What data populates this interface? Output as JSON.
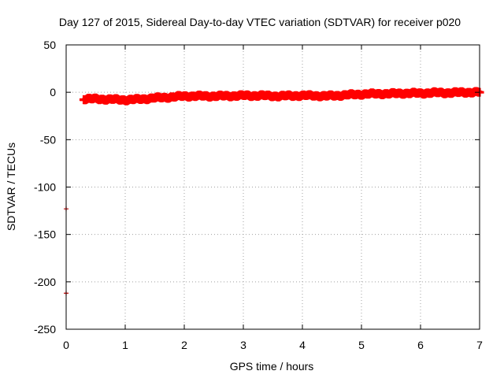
{
  "chart_data": {
    "type": "scatter",
    "title": "Day 127 of 2015, Sidereal Day-to-day VTEC variation (SDTVAR) for receiver p020",
    "xlabel": "GPS time / hours",
    "ylabel": "SDTVAR / TECUs",
    "xlim": [
      0,
      7
    ],
    "ylim": [
      -250,
      50
    ],
    "x_ticks": [
      "0",
      "1",
      "2",
      "3",
      "4",
      "5",
      "6",
      "7"
    ],
    "y_ticks": [
      "50",
      "0",
      "-50",
      "-100",
      "-150",
      "-200",
      "-250"
    ],
    "grid": true,
    "legend": "none",
    "marker": "plus",
    "series_color": "#ff0000",
    "outlier_color": "#c00000",
    "outliers": [
      {
        "x": 0.0,
        "y": -123
      },
      {
        "x": 0.0,
        "y": -212
      }
    ],
    "series": [
      {
        "x": [
          0.3,
          0.5,
          0.75,
          1.0,
          1.2,
          1.5,
          1.8,
          2.0,
          2.3,
          2.6,
          3.0,
          3.3,
          3.6,
          3.9,
          4.2,
          4.4,
          4.7,
          5.0,
          5.3,
          5.5,
          5.7,
          6.0,
          6.2,
          6.5,
          6.8,
          7.0
        ],
        "y": [
          -7,
          -7,
          -7.5,
          -8,
          -7.5,
          -6,
          -5,
          -4,
          -4,
          -4,
          -3.5,
          -3.5,
          -4,
          -3.5,
          -3.5,
          -4,
          -3,
          -2,
          -1.5,
          -1.5,
          -1,
          -1,
          -0.5,
          -0.5,
          0,
          0
        ]
      }
    ]
  }
}
